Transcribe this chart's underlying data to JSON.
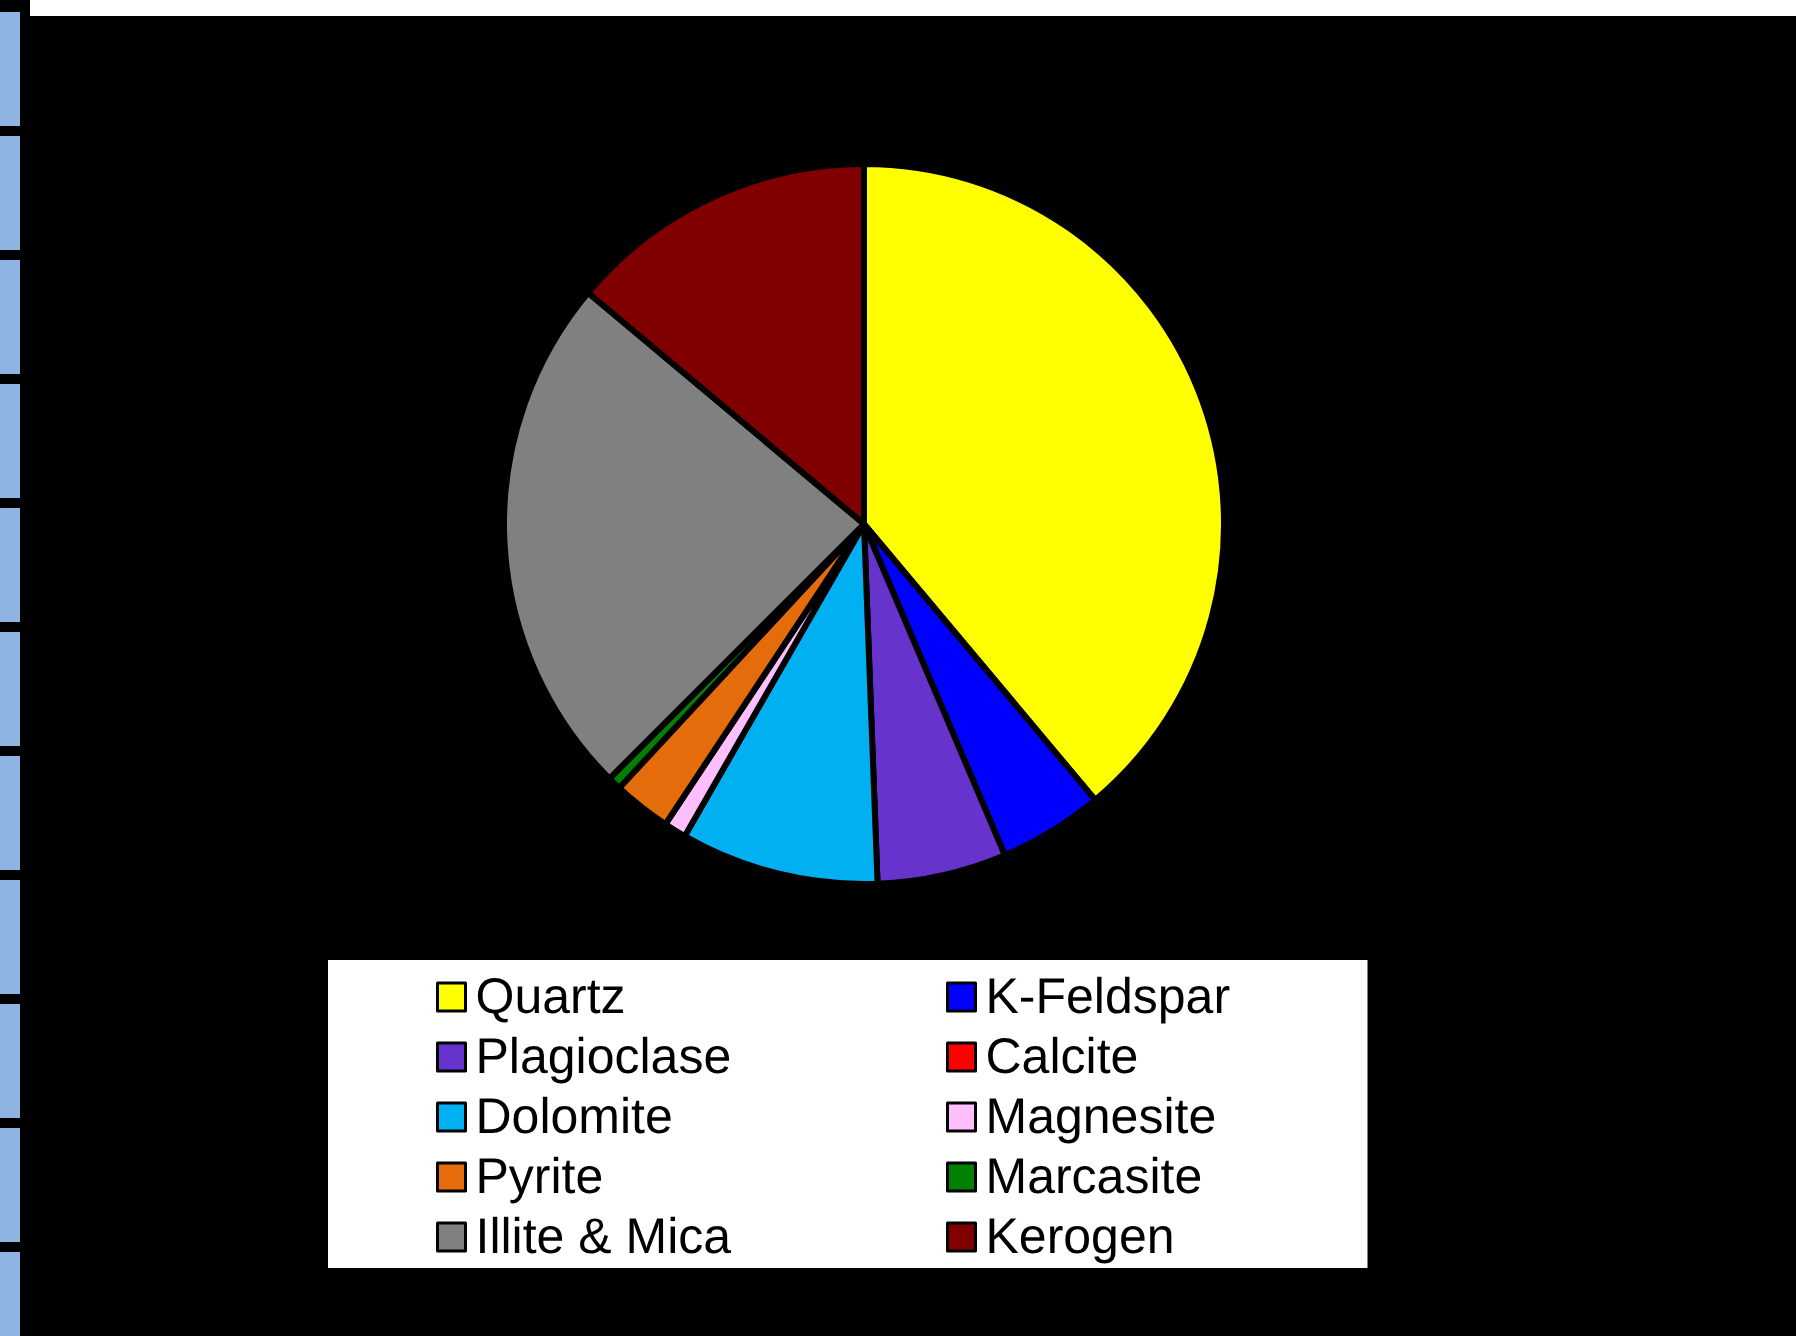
{
  "chart_data": {
    "type": "pie",
    "categories": [
      "Quartz",
      "K-Feldspar",
      "Plagioclase",
      "Calcite",
      "Dolomite",
      "Magnesite",
      "Pyrite",
      "Marcasite",
      "Illite & Mica",
      "Kerogen"
    ],
    "values": [
      38.9,
      4.7,
      5.8,
      0,
      8.9,
      1.0,
      2.6,
      0.6,
      23.6,
      13.9
    ],
    "colors": [
      "#ffff00",
      "#0000ff",
      "#6633cc",
      "#ff0000",
      "#00b0f0",
      "#ffbfff",
      "#e46c0a",
      "#008000",
      "#808080",
      "#800000"
    ],
    "legend": "bottom"
  }
}
